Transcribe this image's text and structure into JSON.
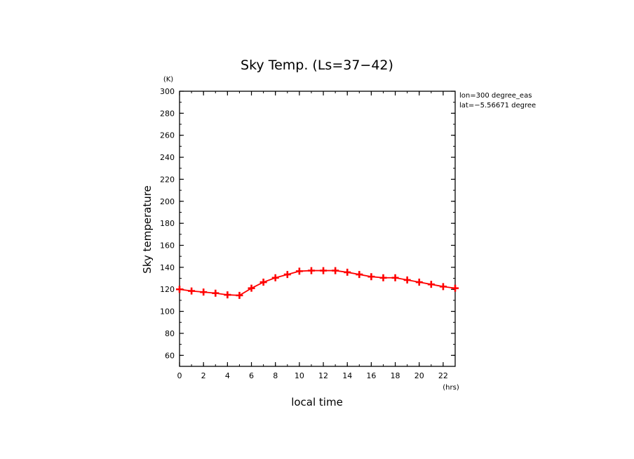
{
  "chart_data": {
    "type": "line",
    "title": "Sky Temp. (Ls=37−42)",
    "xlabel": "local time",
    "ylabel": "Sky temperature",
    "x_unit": "(hrs)",
    "y_unit": "(K)",
    "xlim": [
      0,
      23
    ],
    "ylim": [
      50,
      300
    ],
    "x_ticks": [
      0,
      2,
      4,
      6,
      8,
      10,
      12,
      14,
      16,
      18,
      20,
      22
    ],
    "y_ticks": [
      60,
      80,
      100,
      120,
      140,
      160,
      180,
      200,
      220,
      240,
      260,
      280,
      300
    ],
    "annotations": [
      "lon=300 degree_eas",
      "lat=−5.56671 degree"
    ],
    "line_color": "#ff0000",
    "marker": "plus",
    "grid": false,
    "series": [
      {
        "x": [
          0,
          1,
          2,
          3,
          4,
          5,
          6,
          7,
          8,
          9,
          10,
          11,
          12,
          13,
          14,
          15,
          16,
          17,
          18,
          19,
          20,
          21,
          22,
          23
        ],
        "values": [
          120,
          118.5,
          117.5,
          116.5,
          115,
          114.5,
          121,
          126.5,
          130.5,
          133.5,
          136.5,
          137,
          137,
          137,
          135.5,
          133.5,
          131.5,
          130.5,
          130.5,
          128.5,
          126.5,
          124.5,
          122.5,
          121
        ]
      }
    ]
  }
}
